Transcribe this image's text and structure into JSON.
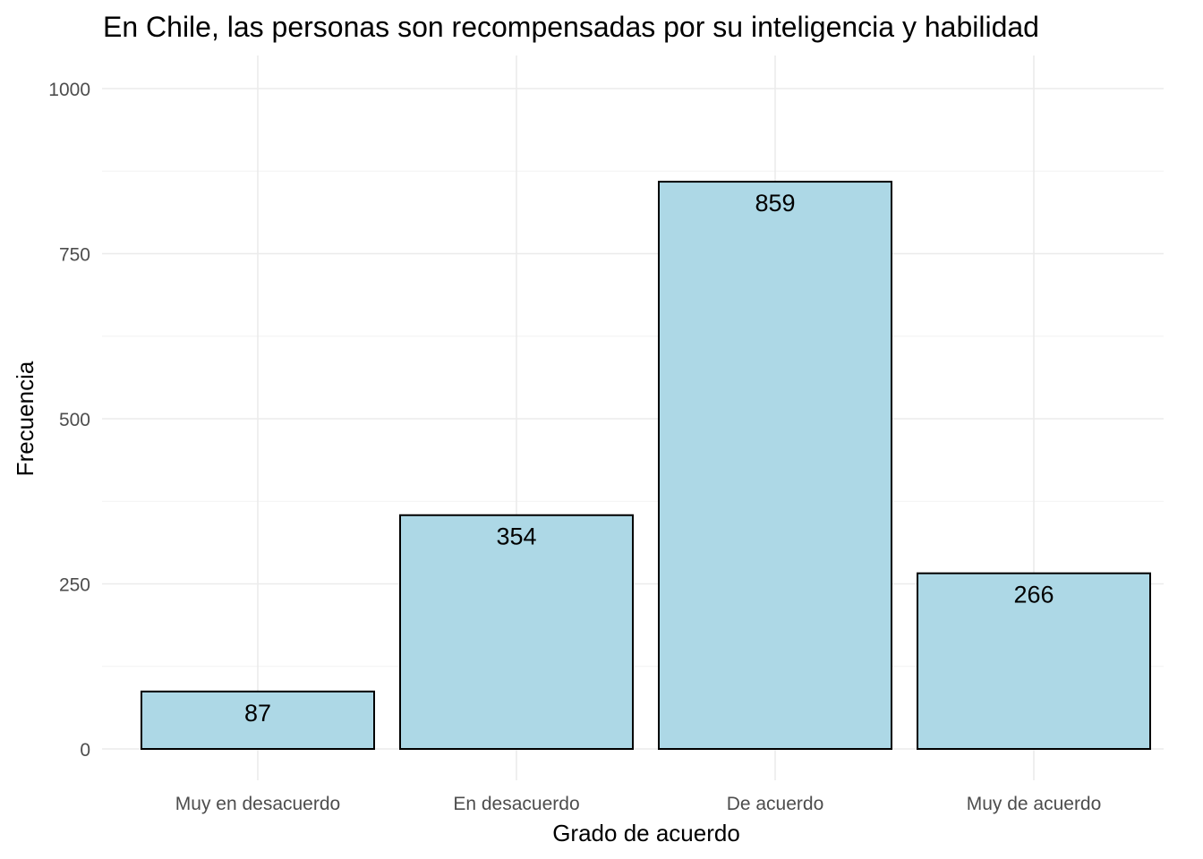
{
  "chart_data": {
    "type": "bar",
    "title": "En Chile, las personas son recompensadas por su inteligencia y habilidad",
    "xlabel": "Grado de acuerdo",
    "ylabel": "Frecuencia",
    "categories": [
      "Muy en desacuerdo",
      "En desacuerdo",
      "De acuerdo",
      "Muy de acuerdo"
    ],
    "values": [
      87,
      354,
      859,
      266
    ],
    "data_labels": [
      "87",
      "354",
      "859",
      "266"
    ],
    "ylim": [
      0,
      1000
    ],
    "yticks": [
      0,
      250,
      500,
      750,
      1000
    ],
    "ytick_labels": [
      "0",
      "250",
      "500",
      "750",
      "1000"
    ],
    "grid": true,
    "legend": "none",
    "colors": {
      "bar_fill": "#add8e6",
      "bar_stroke": "#000000"
    }
  }
}
